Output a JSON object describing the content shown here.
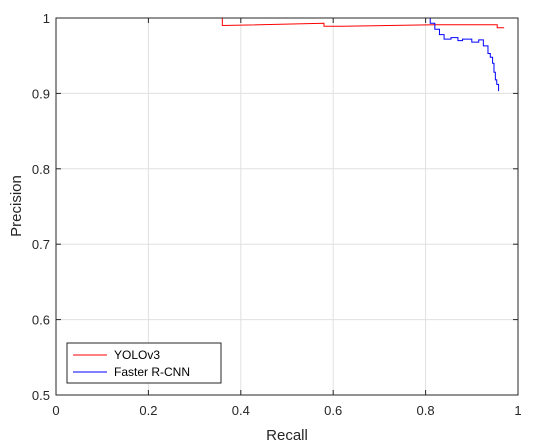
{
  "chart_data": {
    "type": "line",
    "title": "",
    "xlabel": "Recall",
    "ylabel": "Precision",
    "xlim": [
      0,
      1
    ],
    "ylim": [
      0.5,
      1
    ],
    "x_ticks": [
      0,
      0.2,
      0.4,
      0.6,
      0.8,
      1
    ],
    "x_tick_labels": [
      "0",
      "0.2",
      "0.4",
      "0.6",
      "0.8",
      "1"
    ],
    "y_ticks": [
      0.5,
      0.6,
      0.7,
      0.8,
      0.9,
      1
    ],
    "y_tick_labels": [
      "0.5",
      "0.6",
      "0.7",
      "0.8",
      "0.9",
      "1"
    ],
    "grid": true,
    "legend_position": "bottom-left",
    "series": [
      {
        "name": "YOLOv3",
        "color": "#ff0000",
        "x": [
          0.0,
          0.36,
          0.36,
          0.58,
          0.58,
          0.62,
          0.82,
          0.955,
          0.955,
          0.97
        ],
        "y": [
          1.0,
          1.0,
          0.99,
          0.993,
          0.989,
          0.989,
          0.991,
          0.991,
          0.987,
          0.987
        ]
      },
      {
        "name": "Faster R-CNN",
        "color": "#0000ff",
        "x": [
          0.0,
          0.81,
          0.81,
          0.82,
          0.82,
          0.83,
          0.83,
          0.84,
          0.84,
          0.855,
          0.855,
          0.87,
          0.87,
          0.88,
          0.88,
          0.9,
          0.9,
          0.915,
          0.915,
          0.925,
          0.925,
          0.935,
          0.935,
          0.94,
          0.94,
          0.945,
          0.945,
          0.948,
          0.948,
          0.951,
          0.951,
          0.954,
          0.954,
          0.958,
          0.958
        ],
        "y": [
          1.0,
          1.0,
          0.993,
          0.993,
          0.985,
          0.985,
          0.978,
          0.978,
          0.972,
          0.972,
          0.974,
          0.974,
          0.97,
          0.97,
          0.972,
          0.972,
          0.968,
          0.968,
          0.971,
          0.971,
          0.963,
          0.963,
          0.953,
          0.953,
          0.948,
          0.948,
          0.94,
          0.94,
          0.928,
          0.928,
          0.918,
          0.918,
          0.912,
          0.912,
          0.903
        ]
      }
    ]
  }
}
